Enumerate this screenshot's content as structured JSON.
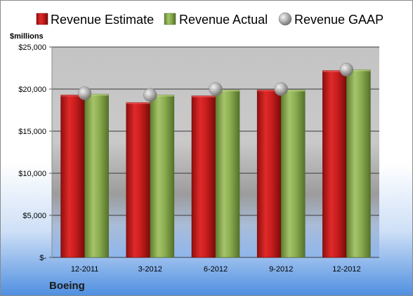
{
  "chart_data": {
    "type": "bar",
    "categories": [
      "12-2011",
      "3-2012",
      "6-2012",
      "9-2012",
      "12-2012"
    ],
    "series": [
      {
        "name": "Revenue Estimate",
        "values": [
          19300,
          18400,
          19200,
          19900,
          22200
        ],
        "color": "#c81e1e"
      },
      {
        "name": "Revenue Actual",
        "values": [
          19400,
          19300,
          19900,
          19900,
          22300
        ],
        "color": "#8cae52"
      },
      {
        "name": "Revenue GAAP",
        "values": [
          19500,
          19300,
          20000,
          20000,
          22300
        ],
        "marker": "gray-sphere"
      }
    ],
    "ylabel": "$millions",
    "ylim": [
      0,
      25000
    ],
    "yticks": [
      0,
      5000,
      10000,
      15000,
      20000,
      25000
    ],
    "ytick_labels": [
      "$-",
      "$5,000",
      "$10,000",
      "$15,000",
      "$20,000",
      "$25,000"
    ],
    "grid": true,
    "legend_position": "top",
    "company": "Boeing"
  }
}
